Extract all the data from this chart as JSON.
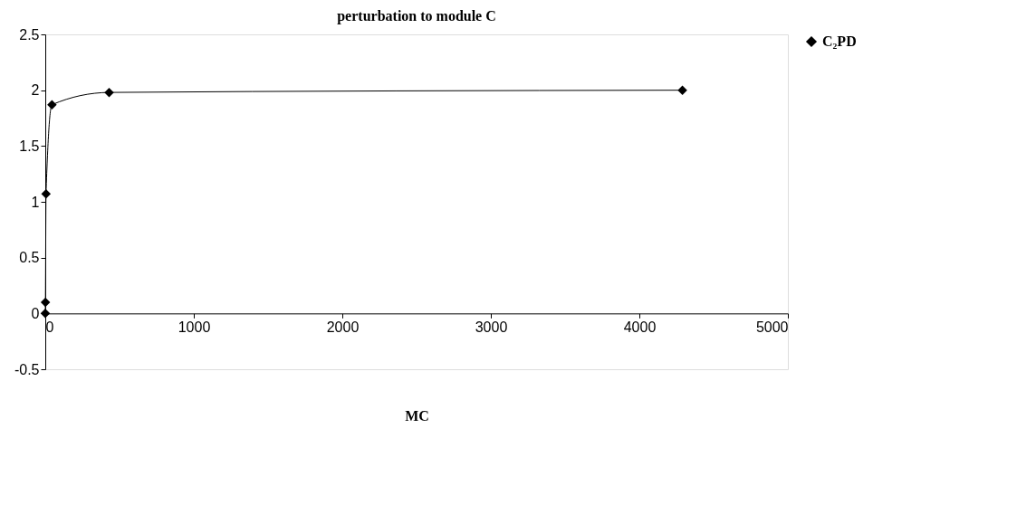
{
  "chart_data": {
    "type": "line",
    "title": "perturbation to module C",
    "xlabel": "MC",
    "series": [
      {
        "name": "C₂PD",
        "color": "#000000",
        "x": [
          0,
          1,
          5,
          45,
          430,
          4290
        ],
        "values": [
          0,
          0.1,
          1.07,
          1.87,
          1.98,
          2.0
        ]
      }
    ],
    "xlim": [
      0,
      5000
    ],
    "xticks": [
      0,
      1000,
      2000,
      3000,
      4000,
      5000
    ],
    "ylim": [
      -0.5,
      2.5
    ],
    "yticks": [
      -0.5,
      0,
      0.5,
      1,
      1.5,
      2,
      2.5
    ],
    "grid": false,
    "legend": "right",
    "marker": "diamond",
    "line_style": "solid"
  }
}
